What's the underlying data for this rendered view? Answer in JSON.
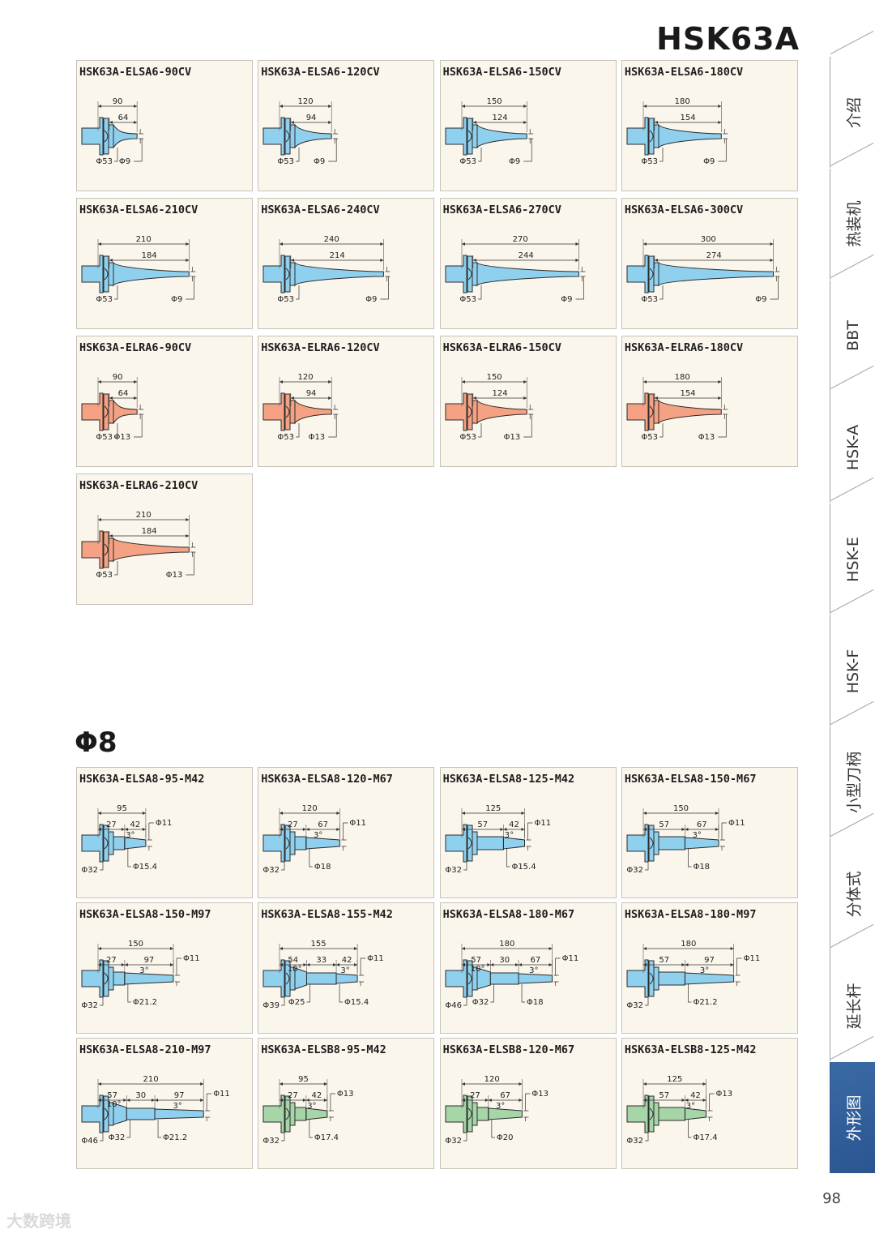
{
  "page": {
    "title": "HSK63A",
    "section_heading": "Φ8",
    "page_number": "98",
    "watermark": "大数跨境"
  },
  "sidebar": [
    {
      "label": "介绍",
      "active": false
    },
    {
      "label": "热装机",
      "active": false
    },
    {
      "label": "BBT",
      "active": false
    },
    {
      "label": "HSK-A",
      "active": false
    },
    {
      "label": "HSK-E",
      "active": false
    },
    {
      "label": "HSK-F",
      "active": false
    },
    {
      "label": "小型刀柄",
      "active": false
    },
    {
      "label": "分体式",
      "active": false
    },
    {
      "label": "延长杆",
      "active": false
    },
    {
      "label": "外形图",
      "active": true
    }
  ],
  "colors": {
    "blue": "#8fd0ee",
    "orange": "#f4a283",
    "green": "#a6d6a8",
    "outline": "#2b2b2b"
  },
  "group1": [
    {
      "name": "HSK63A-ELSA6-90CV",
      "color": "blue",
      "total": "90",
      "reach": "64",
      "d_body": "Φ53",
      "d_tip": "Φ9"
    },
    {
      "name": "HSK63A-ELSA6-120CV",
      "color": "blue",
      "total": "120",
      "reach": "94",
      "d_body": "Φ53",
      "d_tip": "Φ9"
    },
    {
      "name": "HSK63A-ELSA6-150CV",
      "color": "blue",
      "total": "150",
      "reach": "124",
      "d_body": "Φ53",
      "d_tip": "Φ9"
    },
    {
      "name": "HSK63A-ELSA6-180CV",
      "color": "blue",
      "total": "180",
      "reach": "154",
      "d_body": "Φ53",
      "d_tip": "Φ9"
    },
    {
      "name": "HSK63A-ELSA6-210CV",
      "color": "blue",
      "total": "210",
      "reach": "184",
      "d_body": "Φ53",
      "d_tip": "Φ9"
    },
    {
      "name": "HSK63A-ELSA6-240CV",
      "color": "blue",
      "total": "240",
      "reach": "214",
      "d_body": "Φ53",
      "d_tip": "Φ9"
    },
    {
      "name": "HSK63A-ELSA6-270CV",
      "color": "blue",
      "total": "270",
      "reach": "244",
      "d_body": "Φ53",
      "d_tip": "Φ9"
    },
    {
      "name": "HSK63A-ELSA6-300CV",
      "color": "blue",
      "total": "300",
      "reach": "274",
      "d_body": "Φ53",
      "d_tip": "Φ9"
    },
    {
      "name": "HSK63A-ELRA6-90CV",
      "color": "orange",
      "total": "90",
      "reach": "64",
      "d_body": "Φ53",
      "d_tip": "Φ13"
    },
    {
      "name": "HSK63A-ELRA6-120CV",
      "color": "orange",
      "total": "120",
      "reach": "94",
      "d_body": "Φ53",
      "d_tip": "Φ13"
    },
    {
      "name": "HSK63A-ELRA6-150CV",
      "color": "orange",
      "total": "150",
      "reach": "124",
      "d_body": "Φ53",
      "d_tip": "Φ13"
    },
    {
      "name": "HSK63A-ELRA6-180CV",
      "color": "orange",
      "total": "180",
      "reach": "154",
      "d_body": "Φ53",
      "d_tip": "Φ13"
    },
    {
      "name": "HSK63A-ELRA6-210CV",
      "color": "orange",
      "total": "210",
      "reach": "184",
      "d_body": "Φ53",
      "d_tip": "Φ13"
    }
  ],
  "group2": [
    {
      "name": "HSK63A-ELSA8-95-M42",
      "color": "blue",
      "total": "95",
      "segs": [
        "27",
        "42"
      ],
      "angles": [
        "3°"
      ],
      "d_body": "Φ32",
      "d_mid": "",
      "d_tip": "Φ15.4",
      "d_end": "Φ11"
    },
    {
      "name": "HSK63A-ELSA8-120-M67",
      "color": "blue",
      "total": "120",
      "segs": [
        "27",
        "67"
      ],
      "angles": [
        "3°"
      ],
      "d_body": "Φ32",
      "d_mid": "",
      "d_tip": "Φ18",
      "d_end": "Φ11"
    },
    {
      "name": "HSK63A-ELSA8-125-M42",
      "color": "blue",
      "total": "125",
      "segs": [
        "57",
        "42"
      ],
      "angles": [
        "3°"
      ],
      "d_body": "Φ32",
      "d_mid": "",
      "d_tip": "Φ15.4",
      "d_end": "Φ11"
    },
    {
      "name": "HSK63A-ELSA8-150-M67",
      "color": "blue",
      "total": "150",
      "segs": [
        "57",
        "67"
      ],
      "angles": [
        "3°"
      ],
      "d_body": "Φ32",
      "d_mid": "",
      "d_tip": "Φ18",
      "d_end": "Φ11"
    },
    {
      "name": "HSK63A-ELSA8-150-M97",
      "color": "blue",
      "total": "150",
      "segs": [
        "27",
        "97"
      ],
      "angles": [
        "3°"
      ],
      "d_body": "Φ32",
      "d_mid": "",
      "d_tip": "Φ21.2",
      "d_end": "Φ11"
    },
    {
      "name": "HSK63A-ELSA8-155-M42",
      "color": "blue",
      "total": "155",
      "segs": [
        "54",
        "33",
        "42"
      ],
      "angles": [
        "10°",
        "3°"
      ],
      "d_body": "Φ39",
      "d_mid": "Φ25",
      "d_tip": "Φ15.4",
      "d_end": "Φ11"
    },
    {
      "name": "HSK63A-ELSA8-180-M67",
      "color": "blue",
      "total": "180",
      "segs": [
        "57",
        "30",
        "67"
      ],
      "angles": [
        "10°",
        "3°"
      ],
      "d_body": "Φ46",
      "d_mid": "Φ32",
      "d_tip": "Φ18",
      "d_end": "Φ11"
    },
    {
      "name": "HSK63A-ELSA8-180-M97",
      "color": "blue",
      "total": "180",
      "segs": [
        "57",
        "97"
      ],
      "angles": [
        "3°"
      ],
      "d_body": "Φ32",
      "d_mid": "",
      "d_tip": "Φ21.2",
      "d_end": "Φ11"
    },
    {
      "name": "HSK63A-ELSA8-210-M97",
      "color": "blue",
      "total": "210",
      "segs": [
        "57",
        "30",
        "97"
      ],
      "angles": [
        "10°",
        "3°"
      ],
      "d_body": "Φ46",
      "d_mid": "Φ32",
      "d_tip": "Φ21.2",
      "d_end": "Φ11"
    },
    {
      "name": "HSK63A-ELSB8-95-M42",
      "color": "green",
      "total": "95",
      "segs": [
        "27",
        "42"
      ],
      "angles": [
        "3°"
      ],
      "d_body": "Φ32",
      "d_mid": "",
      "d_tip": "Φ17.4",
      "d_end": "Φ13"
    },
    {
      "name": "HSK63A-ELSB8-120-M67",
      "color": "green",
      "total": "120",
      "segs": [
        "27",
        "67"
      ],
      "angles": [
        "3°"
      ],
      "d_body": "Φ32",
      "d_mid": "",
      "d_tip": "Φ20",
      "d_end": "Φ13"
    },
    {
      "name": "HSK63A-ELSB8-125-M42",
      "color": "green",
      "total": "125",
      "segs": [
        "57",
        "42"
      ],
      "angles": [
        "3°"
      ],
      "d_body": "Φ32",
      "d_mid": "",
      "d_tip": "Φ17.4",
      "d_end": "Φ13"
    }
  ]
}
